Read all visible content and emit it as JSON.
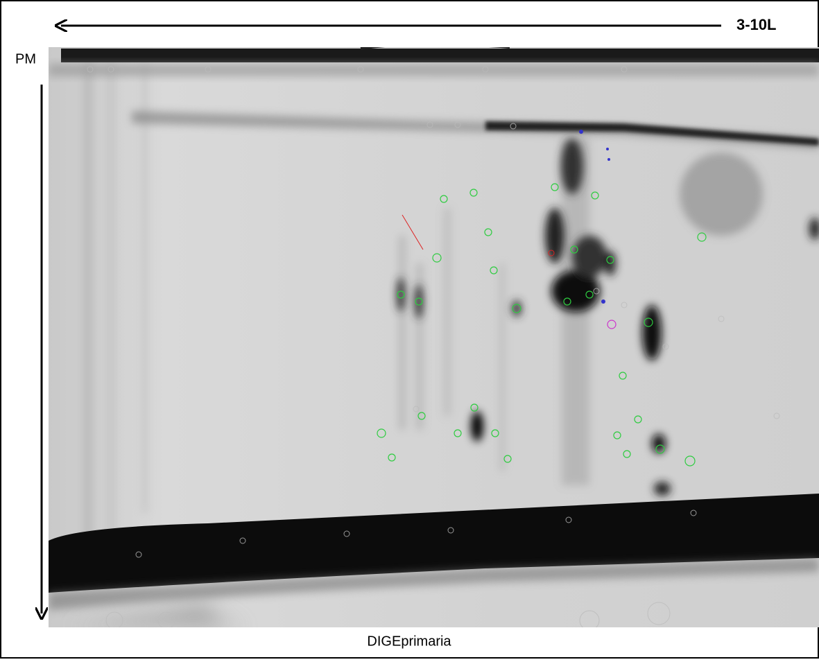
{
  "labels": {
    "ph_range": "3-10L",
    "mass_axis": "PM",
    "caption": "DIGEprimaria"
  }
}
